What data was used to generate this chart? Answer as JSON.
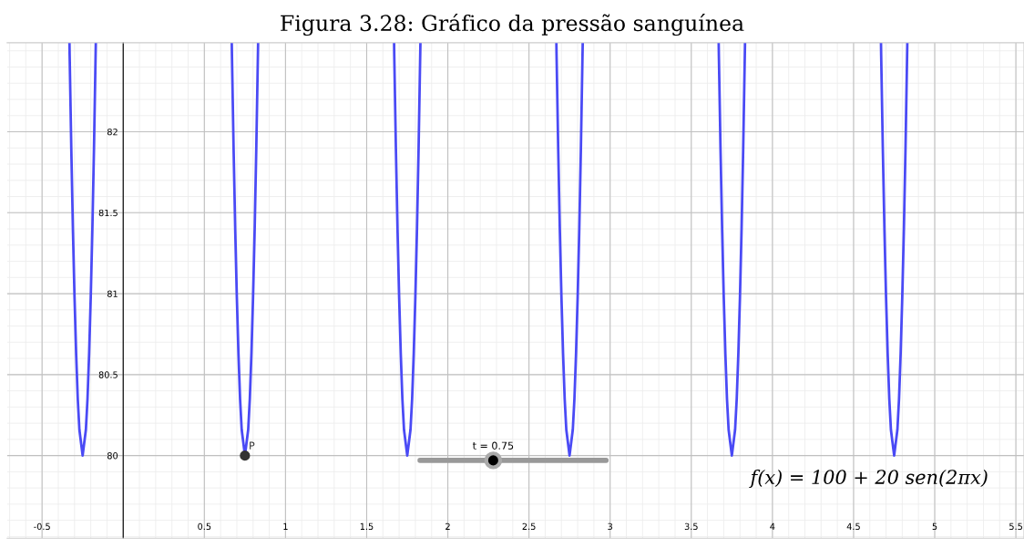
{
  "chart_data": {
    "type": "line",
    "title": "Figura 3.28: Gráfico da pressão sanguínea",
    "series": [
      {
        "color": "#4a4af5",
        "x": [
          -0.331,
          -0.33,
          -0.32,
          -0.31,
          -0.3,
          -0.29,
          -0.28,
          -0.27,
          -0.25,
          -0.23,
          -0.22,
          -0.21,
          -0.2,
          -0.19,
          -0.18,
          -0.169,
          0.2,
          0.669,
          0.67,
          0.68,
          0.69,
          0.7,
          0.71,
          0.72,
          0.73,
          0.75,
          0.77,
          0.78,
          0.79,
          0.8,
          0.81,
          0.82,
          0.831,
          1.2,
          1.669,
          1.67,
          1.68,
          1.69,
          1.7,
          1.71,
          1.72,
          1.73,
          1.75,
          1.77,
          1.78,
          1.79,
          1.8,
          1.81,
          1.82,
          1.831,
          2.2,
          2.669,
          2.67,
          2.68,
          2.69,
          2.7,
          2.71,
          2.72,
          2.73,
          2.75,
          2.77,
          2.78,
          2.79,
          2.8,
          2.81,
          2.82,
          2.831,
          3.2,
          3.669,
          3.67,
          3.68,
          3.69,
          3.7,
          3.71,
          3.72,
          3.73,
          3.75,
          3.77,
          3.78,
          3.79,
          3.8,
          3.81,
          3.82,
          3.831,
          4.2,
          4.669,
          4.67,
          4.68,
          4.69,
          4.7,
          4.71,
          4.72,
          4.73,
          4.75,
          4.77,
          4.78,
          4.79,
          4.8,
          4.81,
          4.82,
          4.831
        ],
        "values": [
          82.54,
          82.47,
          81.9,
          81.4,
          80.98,
          80.63,
          80.35,
          80.16,
          80,
          80.16,
          80.35,
          80.63,
          80.98,
          81.4,
          81.9,
          82.54,
          null,
          82.54,
          82.47,
          81.9,
          81.4,
          80.98,
          80.63,
          80.35,
          80.16,
          80,
          80.16,
          80.35,
          80.63,
          80.98,
          81.4,
          81.9,
          82.54,
          null,
          82.54,
          82.47,
          81.9,
          81.4,
          80.98,
          80.63,
          80.35,
          80.16,
          80,
          80.16,
          80.35,
          80.63,
          80.98,
          81.4,
          81.9,
          82.54,
          null,
          82.54,
          82.47,
          81.9,
          81.4,
          80.98,
          80.63,
          80.35,
          80.16,
          80,
          80.16,
          80.35,
          80.63,
          80.98,
          81.4,
          81.9,
          82.54,
          null,
          82.54,
          82.47,
          81.9,
          81.4,
          80.98,
          80.63,
          80.35,
          80.16,
          80,
          80.16,
          80.35,
          80.63,
          80.98,
          81.4,
          81.9,
          82.54,
          null,
          82.54,
          82.47,
          81.9,
          81.4,
          80.98,
          80.63,
          80.35,
          80.16,
          80,
          80.16,
          80.35,
          80.63,
          80.98,
          81.4,
          81.9,
          82.54
        ]
      },
      {
        "type": "scatter",
        "name": "P",
        "color": "#333333",
        "x": [
          0.75
        ],
        "values": [
          80
        ],
        "marker": "circle"
      }
    ],
    "annotations": [
      "t = 0.75",
      "f(x) = 100 + 20 sen(2πx)"
    ],
    "xlim": [
      -0.715,
      5.55
    ],
    "ylim": [
      79.49,
      82.55
    ],
    "xticks": [
      -0.5,
      {
        "value": 0,
        "label": null
      },
      0.5,
      1,
      1.5,
      2,
      2.5,
      3,
      3.5,
      4,
      4.5,
      5,
      5.5
    ],
    "yticks": [
      80,
      80.5,
      81,
      81.5,
      82
    ],
    "grid": true
  }
}
